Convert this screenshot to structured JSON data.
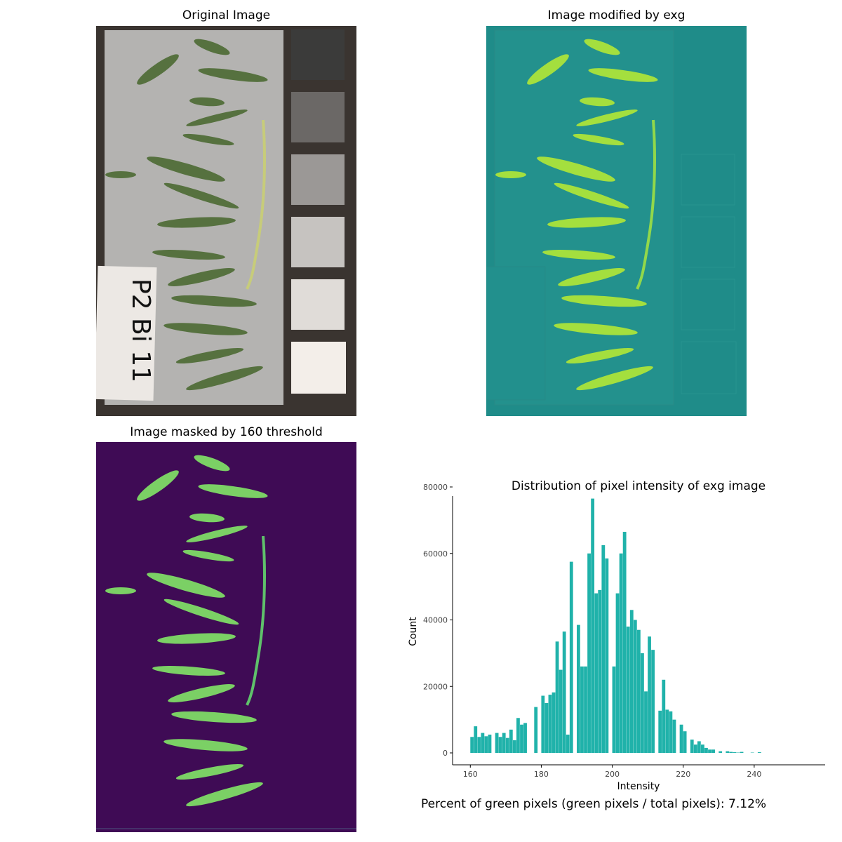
{
  "panels": {
    "original_title": "Original Image",
    "exg_title": "Image modified by exg",
    "mask_title": "Image masked by 160 threshold"
  },
  "specimen_label": "P2 Bi 11",
  "colors": {
    "bar": "#20b2aa",
    "board": "#b4b3b1",
    "background_dark": "#3a3430",
    "leaf": "#56713f",
    "exg_bg": "#1f8c89",
    "exg_leaf": "#a4df3e",
    "mask_bg": "#3f0b55",
    "mask_leaf": "#7bd065"
  },
  "chart_data": {
    "type": "bar",
    "title": "Distribution of pixel intensity of exg image",
    "xlabel": "Intensity",
    "ylabel": "Count",
    "xlim": [
      155,
      260
    ],
    "ylim": [
      0,
      80000
    ],
    "xticks": [
      160,
      180,
      200,
      220,
      240
    ],
    "yticks": [
      0,
      20000,
      40000,
      60000,
      80000
    ],
    "x": [
      160,
      161,
      162,
      163,
      164,
      165,
      166,
      167,
      168,
      169,
      170,
      171,
      172,
      173,
      174,
      175,
      176,
      177,
      178,
      179,
      180,
      181,
      182,
      183,
      184,
      185,
      186,
      187,
      188,
      189,
      190,
      191,
      192,
      193,
      194,
      195,
      196,
      197,
      198,
      199,
      200,
      201,
      202,
      203,
      204,
      205,
      206,
      207,
      208,
      209,
      210,
      211,
      212,
      213,
      214,
      215,
      216,
      217,
      218,
      219,
      220,
      221,
      222,
      223,
      224,
      225,
      226,
      227,
      228,
      229,
      230,
      231,
      232,
      233,
      234,
      235,
      236,
      237,
      238,
      239,
      240,
      241,
      242,
      243,
      244,
      245
    ],
    "values": [
      4800,
      8000,
      4800,
      6000,
      5000,
      5500,
      0,
      6000,
      4800,
      6000,
      4500,
      7000,
      3800,
      10500,
      8500,
      9000,
      0,
      0,
      13800,
      0,
      17200,
      15000,
      17500,
      18200,
      33500,
      25000,
      36500,
      5500,
      57500,
      0,
      38500,
      26000,
      26000,
      60000,
      76500,
      48000,
      49000,
      62500,
      58500,
      0,
      26000,
      48000,
      60000,
      66500,
      38000,
      43000,
      40000,
      37000,
      30000,
      18500,
      35000,
      31000,
      0,
      12700,
      22000,
      13000,
      12500,
      10000,
      0,
      8500,
      6500,
      0,
      4000,
      2500,
      3500,
      2500,
      1500,
      1000,
      1000,
      0,
      500,
      0,
      500,
      300,
      200,
      100,
      300,
      0,
      0,
      100,
      0,
      200,
      0,
      0,
      0,
      0
    ],
    "annotation": "Percent of green pixels (green pixels / total pixels): 7.12%"
  }
}
